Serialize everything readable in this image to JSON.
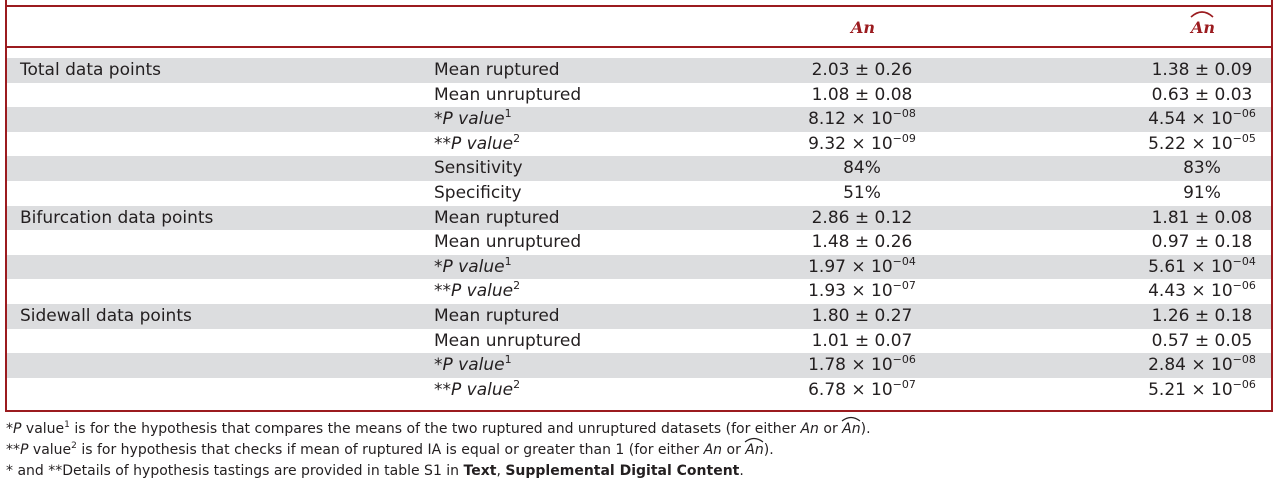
{
  "columns": {
    "an": "An",
    "anhat": "An"
  },
  "rows": [
    {
      "group": "Total data points",
      "prefix": "",
      "label": "Mean ruptured",
      "sup": "",
      "an": "2.03 ± 0.26",
      "anhat": "1.38 ± 0.09",
      "shaded": true
    },
    {
      "group": "",
      "prefix": "",
      "label": "Mean unruptured",
      "sup": "",
      "an": "1.08 ± 0.08",
      "anhat": "0.63 ± 0.03",
      "shaded": false
    },
    {
      "group": "",
      "prefix": "*",
      "label": "P value",
      "sup": "1",
      "an_base": "8.12 × 10",
      "an_exp": "−08",
      "anhat_base": "4.54 × 10",
      "anhat_exp": "−06",
      "shaded": true
    },
    {
      "group": "",
      "prefix": "**",
      "label": "P value",
      "sup": "2",
      "an_base": "9.32 × 10",
      "an_exp": "−09",
      "anhat_base": "5.22 × 10",
      "anhat_exp": "−05",
      "shaded": false
    },
    {
      "group": "",
      "prefix": "",
      "label": "Sensitivity",
      "sup": "",
      "an": "84%",
      "anhat": "83%",
      "shaded": true
    },
    {
      "group": "",
      "prefix": "",
      "label": "Specificity",
      "sup": "",
      "an": "51%",
      "anhat": "91%",
      "shaded": false
    },
    {
      "group": "Bifurcation data points",
      "prefix": "",
      "label": "Mean ruptured",
      "sup": "",
      "an": "2.86 ± 0.12",
      "anhat": "1.81 ± 0.08",
      "shaded": true
    },
    {
      "group": "",
      "prefix": "",
      "label": "Mean unruptured",
      "sup": "",
      "an": "1.48 ± 0.26",
      "anhat": "0.97 ± 0.18",
      "shaded": false
    },
    {
      "group": "",
      "prefix": "*",
      "label": "P value",
      "sup": "1",
      "an_base": "1.97 × 10",
      "an_exp": "−04",
      "anhat_base": "5.61 × 10",
      "anhat_exp": "−04",
      "shaded": true
    },
    {
      "group": "",
      "prefix": "**",
      "label": "P value",
      "sup": "2",
      "an_base": "1.93 × 10",
      "an_exp": "−07",
      "anhat_base": "4.43 × 10",
      "anhat_exp": "−06",
      "shaded": false
    },
    {
      "group": "Sidewall data points",
      "prefix": "",
      "label": "Mean ruptured",
      "sup": "",
      "an": "1.80 ± 0.27",
      "anhat": "1.26 ± 0.18",
      "shaded": true
    },
    {
      "group": "",
      "prefix": "",
      "label": "Mean unruptured",
      "sup": "",
      "an": "1.01 ± 0.07",
      "anhat": "0.57 ± 0.05",
      "shaded": false
    },
    {
      "group": "",
      "prefix": "*",
      "label": "P value",
      "sup": "1",
      "an_base": "1.78 × 10",
      "an_exp": "−06",
      "anhat_base": "2.84 × 10",
      "anhat_exp": "−08",
      "shaded": true
    },
    {
      "group": "",
      "prefix": "**",
      "label": "P value",
      "sup": "2",
      "an_base": "6.78 × 10",
      "an_exp": "−07",
      "anhat_base": "5.21 × 10",
      "anhat_exp": "−06",
      "shaded": false
    }
  ],
  "footnotes": {
    "n1": {
      "star": "*",
      "p": "P",
      "value": " value",
      "sup": "1",
      "text_a": " is for the hypothesis that compares the means of the two ruptured and unruptured datasets (for either ",
      "an1": "An",
      "or": " or ",
      "an2": "An",
      "end": ")."
    },
    "n2": {
      "star": "**",
      "p": "P",
      "value": " value",
      "sup": "2",
      "text_a": " is for hypothesis that checks if mean of ruptured IA is equal or greater than 1 (for either ",
      "an1": "An",
      "or": " or ",
      "an2": "An",
      "end": ")."
    },
    "n3": {
      "text_a": "* and **Details of hypothesis tastings are provided in table S1 in ",
      "bold1": "Text",
      "comma": ", ",
      "bold2": "Supplemental Digital Content",
      "end": "."
    }
  },
  "colors": {
    "frame": "#9b1b1f",
    "shade": "#dcdddf",
    "text": "#231f20"
  }
}
